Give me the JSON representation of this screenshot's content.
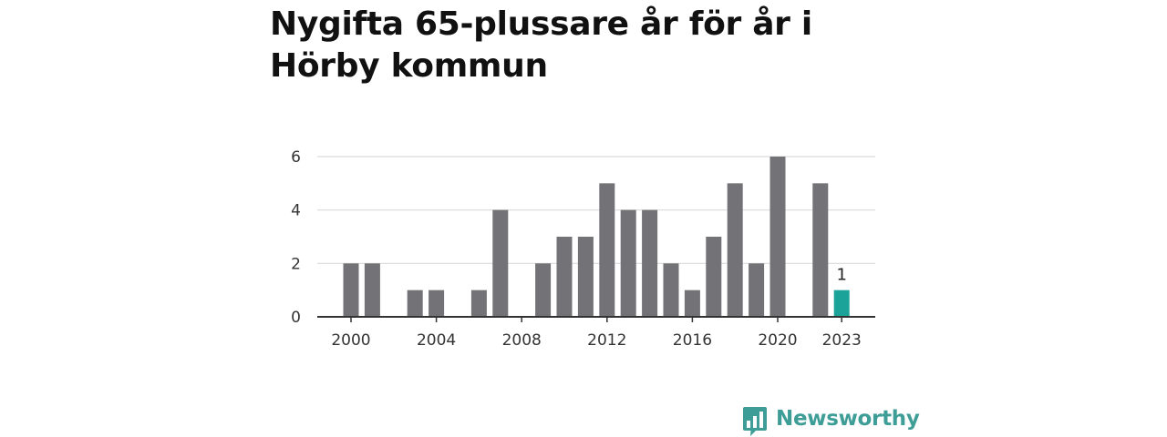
{
  "title": "Nygifta 65-plussare år för år i Hörby kommun",
  "brand": {
    "name": "Newsworthy",
    "icon": "bar-chart-speech-bubble-icon",
    "color": "#3e9d96"
  },
  "chart_data": {
    "type": "bar",
    "title": "Nygifta 65-plussare år för år i Hörby kommun",
    "xlabel": "",
    "ylabel": "",
    "categories": [
      "2000",
      "2001",
      "2002",
      "2003",
      "2004",
      "2005",
      "2006",
      "2007",
      "2008",
      "2009",
      "2010",
      "2011",
      "2012",
      "2013",
      "2014",
      "2015",
      "2016",
      "2017",
      "2018",
      "2019",
      "2020",
      "2021",
      "2022",
      "2023"
    ],
    "values": [
      2,
      2,
      0,
      1,
      1,
      0,
      1,
      4,
      0,
      2,
      3,
      3,
      5,
      4,
      4,
      2,
      1,
      3,
      5,
      2,
      6,
      0,
      5,
      1
    ],
    "x_tick_labels": [
      "2000",
      "2004",
      "2008",
      "2012",
      "2016",
      "2020",
      "2023"
    ],
    "y_ticks": [
      0,
      2,
      4,
      6
    ],
    "ylim": [
      0,
      6
    ],
    "grid": "horizontal",
    "highlight": {
      "category": "2023",
      "label": "1"
    },
    "colors": {
      "bar": "#737277",
      "highlight": "#1ba39a",
      "grid": "#d9d9d9",
      "axis": "#333333"
    }
  }
}
